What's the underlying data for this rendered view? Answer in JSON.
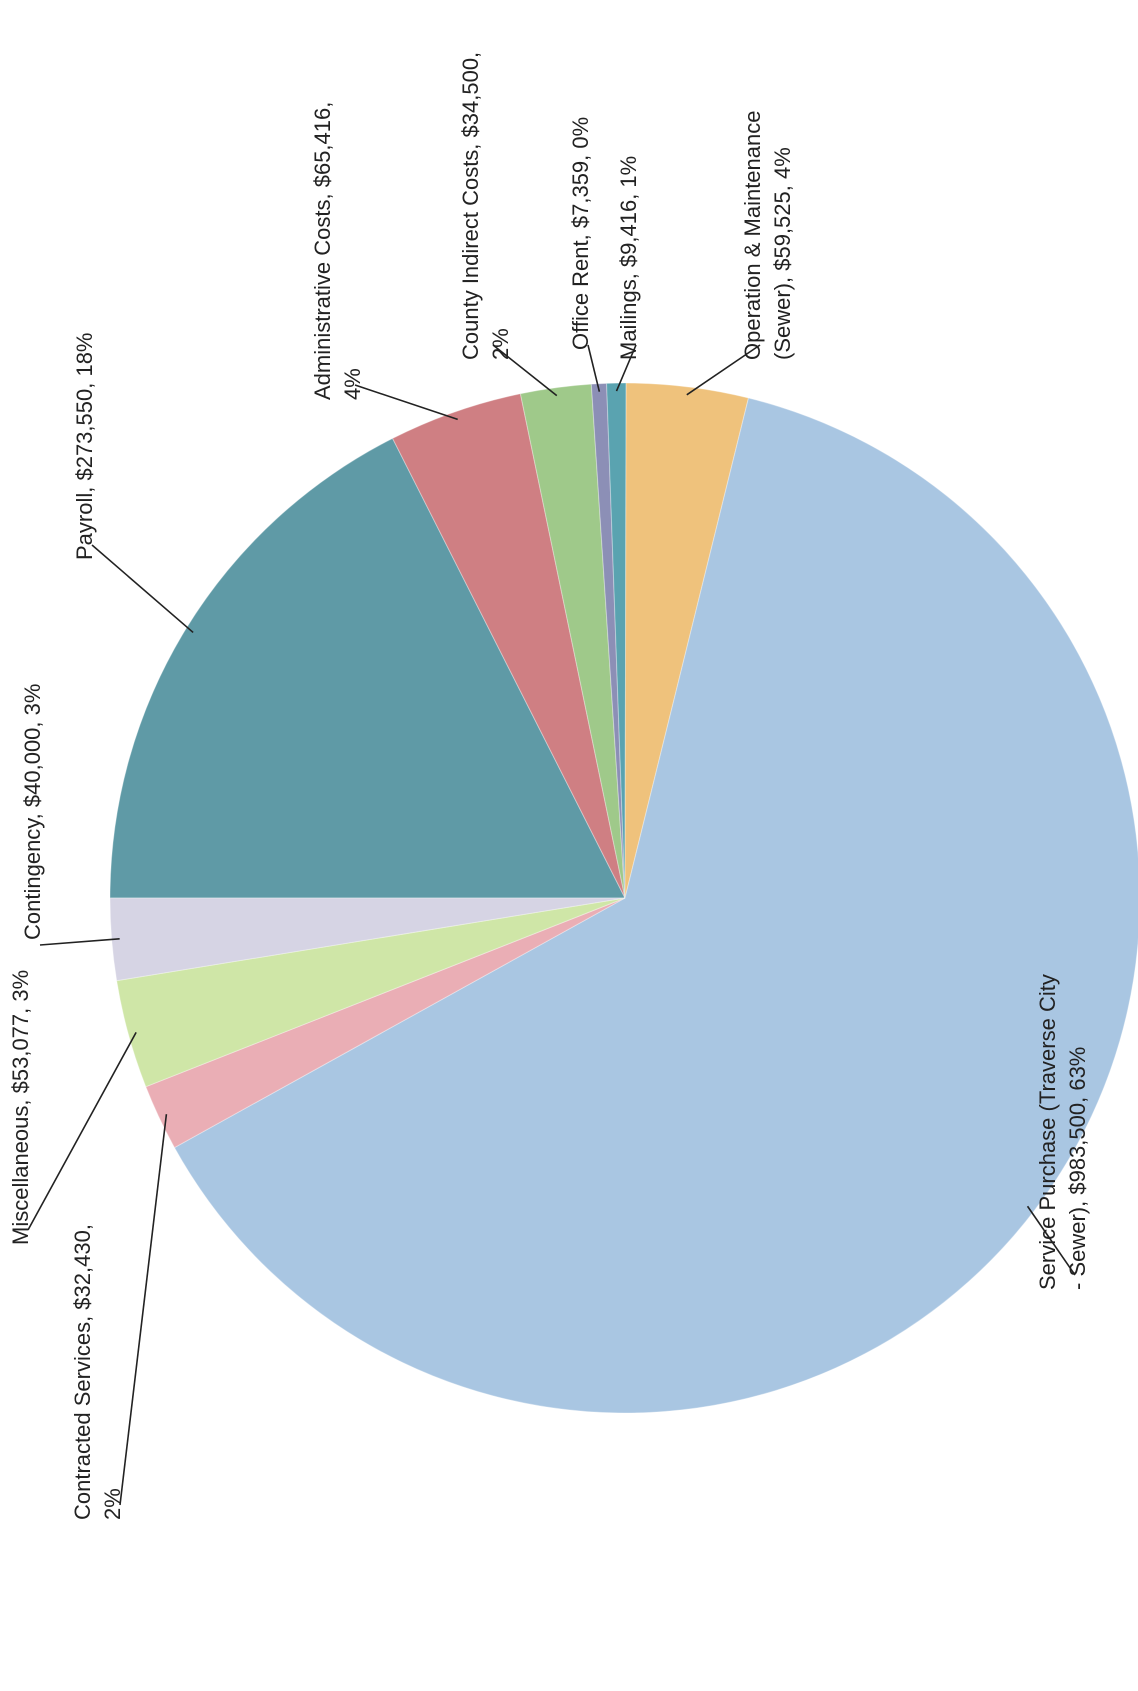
{
  "chart_data": {
    "type": "pie",
    "title": "",
    "orientation_note_text": "",
    "slices": [
      {
        "label": "Payroll",
        "value": 273550,
        "value_text": "$273,550",
        "percent_text": "18%",
        "color": "#5f9aa6",
        "text_lines": [
          "Payroll, $273,550, 18%"
        ]
      },
      {
        "label": "Administrative Costs",
        "value": 65416,
        "value_text": "$65,416",
        "percent_text": "4%",
        "color": "#cf7f83",
        "text_lines": [
          "Administrative Costs, $65,416,",
          "4%"
        ]
      },
      {
        "label": "County Indirect Costs",
        "value": 34500,
        "value_text": "$34,500",
        "percent_text": "2%",
        "color": "#9fc98a",
        "text_lines": [
          "County Indirect Costs, $34,500,",
          "2%"
        ]
      },
      {
        "label": "Office Rent",
        "value": 7359,
        "value_text": "$7,359",
        "percent_text": "0%",
        "color": "#8c8fb6",
        "text_lines": [
          "Office Rent, $7,359, 0%"
        ]
      },
      {
        "label": "Mailings",
        "value": 9416,
        "value_text": "$9,416",
        "percent_text": "1%",
        "color": "#5aa3b0",
        "text_lines": [
          "Mailings, $9,416, 1%"
        ]
      },
      {
        "label": "Operation & Maintenance (Sewer)",
        "value": 59525,
        "value_text": "$59,525",
        "percent_text": "4%",
        "color": "#efc27c",
        "text_lines": [
          "Operation & Maintenance",
          "(Sewer), $59,525, 4%"
        ]
      },
      {
        "label": "Service Purchase (Traverse City - Sewer)",
        "value": 983500,
        "value_text": "$983,500",
        "percent_text": "63%",
        "color": "#a9c6e2",
        "text_lines": [
          "Service Purchase (Traverse City",
          "- Sewer), $983,500, 63%"
        ]
      },
      {
        "label": "Contracted Services",
        "value": 32430,
        "value_text": "$32,430",
        "percent_text": "2%",
        "color": "#eaaeb5",
        "text_lines": [
          "Contracted Services, $32,430,",
          "2%"
        ]
      },
      {
        "label": "Miscellaneous",
        "value": 53077,
        "value_text": "$53,077",
        "percent_text": "3%",
        "color": "#cfe6a7",
        "text_lines": [
          "Miscellaneous, $53,077, 3%"
        ]
      },
      {
        "label": "Contingency",
        "value": 40000,
        "value_text": "$40,000",
        "percent_text": "3%",
        "color": "#d6d4e4",
        "text_lines": [
          "Contingency, $40,000, 3%"
        ]
      }
    ],
    "legend": "none",
    "label_style": "category, value, percentage with leader lines",
    "rotation": "page rotated 90 degrees counter-clockwise"
  }
}
